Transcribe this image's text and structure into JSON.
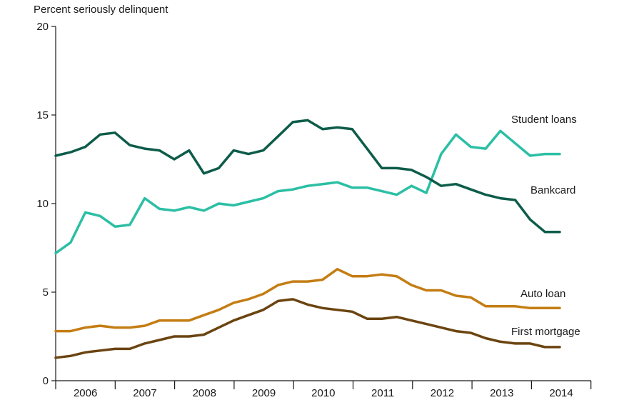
{
  "chart_data": {
    "type": "line",
    "title": "",
    "ylabel": "Percent seriously delinquent",
    "xlabel": "",
    "ylim": [
      0,
      20
    ],
    "yticks": [
      0,
      5,
      10,
      15,
      20
    ],
    "ytick_labels": [
      "0",
      "5",
      "10",
      "15",
      "20"
    ],
    "categories": [
      "2006",
      "2007",
      "2008",
      "2009",
      "2010",
      "2011",
      "2012",
      "2013",
      "2014"
    ],
    "grid": false,
    "x": [
      "2005Q4",
      "2006Q1",
      "2006Q2",
      "2006Q3",
      "2006Q4",
      "2007Q1",
      "2007Q2",
      "2007Q3",
      "2007Q4",
      "2008Q1",
      "2008Q2",
      "2008Q3",
      "2008Q4",
      "2009Q1",
      "2009Q2",
      "2009Q3",
      "2009Q4",
      "2010Q1",
      "2010Q2",
      "2010Q3",
      "2010Q4",
      "2011Q1",
      "2011Q2",
      "2011Q3",
      "2011Q4",
      "2012Q1",
      "2012Q2",
      "2012Q3",
      "2012Q4",
      "2013Q1",
      "2013Q2",
      "2013Q3",
      "2013Q4",
      "2014Q1",
      "2014Q2"
    ],
    "series": [
      {
        "name": "Student loans",
        "color": "#2bbfa4",
        "values": [
          7.2,
          7.8,
          9.5,
          9.3,
          8.7,
          8.8,
          10.3,
          9.7,
          9.6,
          9.8,
          9.6,
          10.0,
          9.9,
          10.1,
          10.3,
          10.7,
          10.8,
          11.0,
          11.1,
          11.2,
          10.9,
          10.9,
          10.7,
          10.5,
          11.0,
          10.6,
          12.8,
          13.9,
          13.2,
          13.1,
          14.1,
          13.4,
          12.7,
          12.8,
          12.8
        ]
      },
      {
        "name": "Bankcard",
        "color": "#0d5c4a",
        "values": [
          12.7,
          12.9,
          13.2,
          13.9,
          14.0,
          13.3,
          13.1,
          13.0,
          12.5,
          13.0,
          11.7,
          12.0,
          13.0,
          12.8,
          13.0,
          13.8,
          14.6,
          14.7,
          14.2,
          14.3,
          14.2,
          13.1,
          12.0,
          12.0,
          11.9,
          11.5,
          11.0,
          11.1,
          10.8,
          10.5,
          10.3,
          10.2,
          9.1,
          8.4,
          8.4
        ]
      },
      {
        "name": "Auto loan",
        "color": "#c47d13",
        "values": [
          2.8,
          2.8,
          3.0,
          3.1,
          3.0,
          3.0,
          3.1,
          3.4,
          3.4,
          3.4,
          3.7,
          4.0,
          4.4,
          4.6,
          4.9,
          5.4,
          5.6,
          5.6,
          5.7,
          6.3,
          5.9,
          5.9,
          6.0,
          5.9,
          5.4,
          5.1,
          5.1,
          4.8,
          4.7,
          4.2,
          4.2,
          4.2,
          4.1,
          4.1,
          4.1
        ]
      },
      {
        "name": "First mortgage",
        "color": "#6b4410",
        "values": [
          1.3,
          1.4,
          1.6,
          1.7,
          1.8,
          1.8,
          2.1,
          2.3,
          2.5,
          2.5,
          2.6,
          3.0,
          3.4,
          3.7,
          4.0,
          4.5,
          4.6,
          4.3,
          4.1,
          4.0,
          3.9,
          3.5,
          3.5,
          3.6,
          3.4,
          3.2,
          3.0,
          2.8,
          2.7,
          2.4,
          2.2,
          2.1,
          2.1,
          1.9,
          1.9
        ]
      }
    ]
  }
}
